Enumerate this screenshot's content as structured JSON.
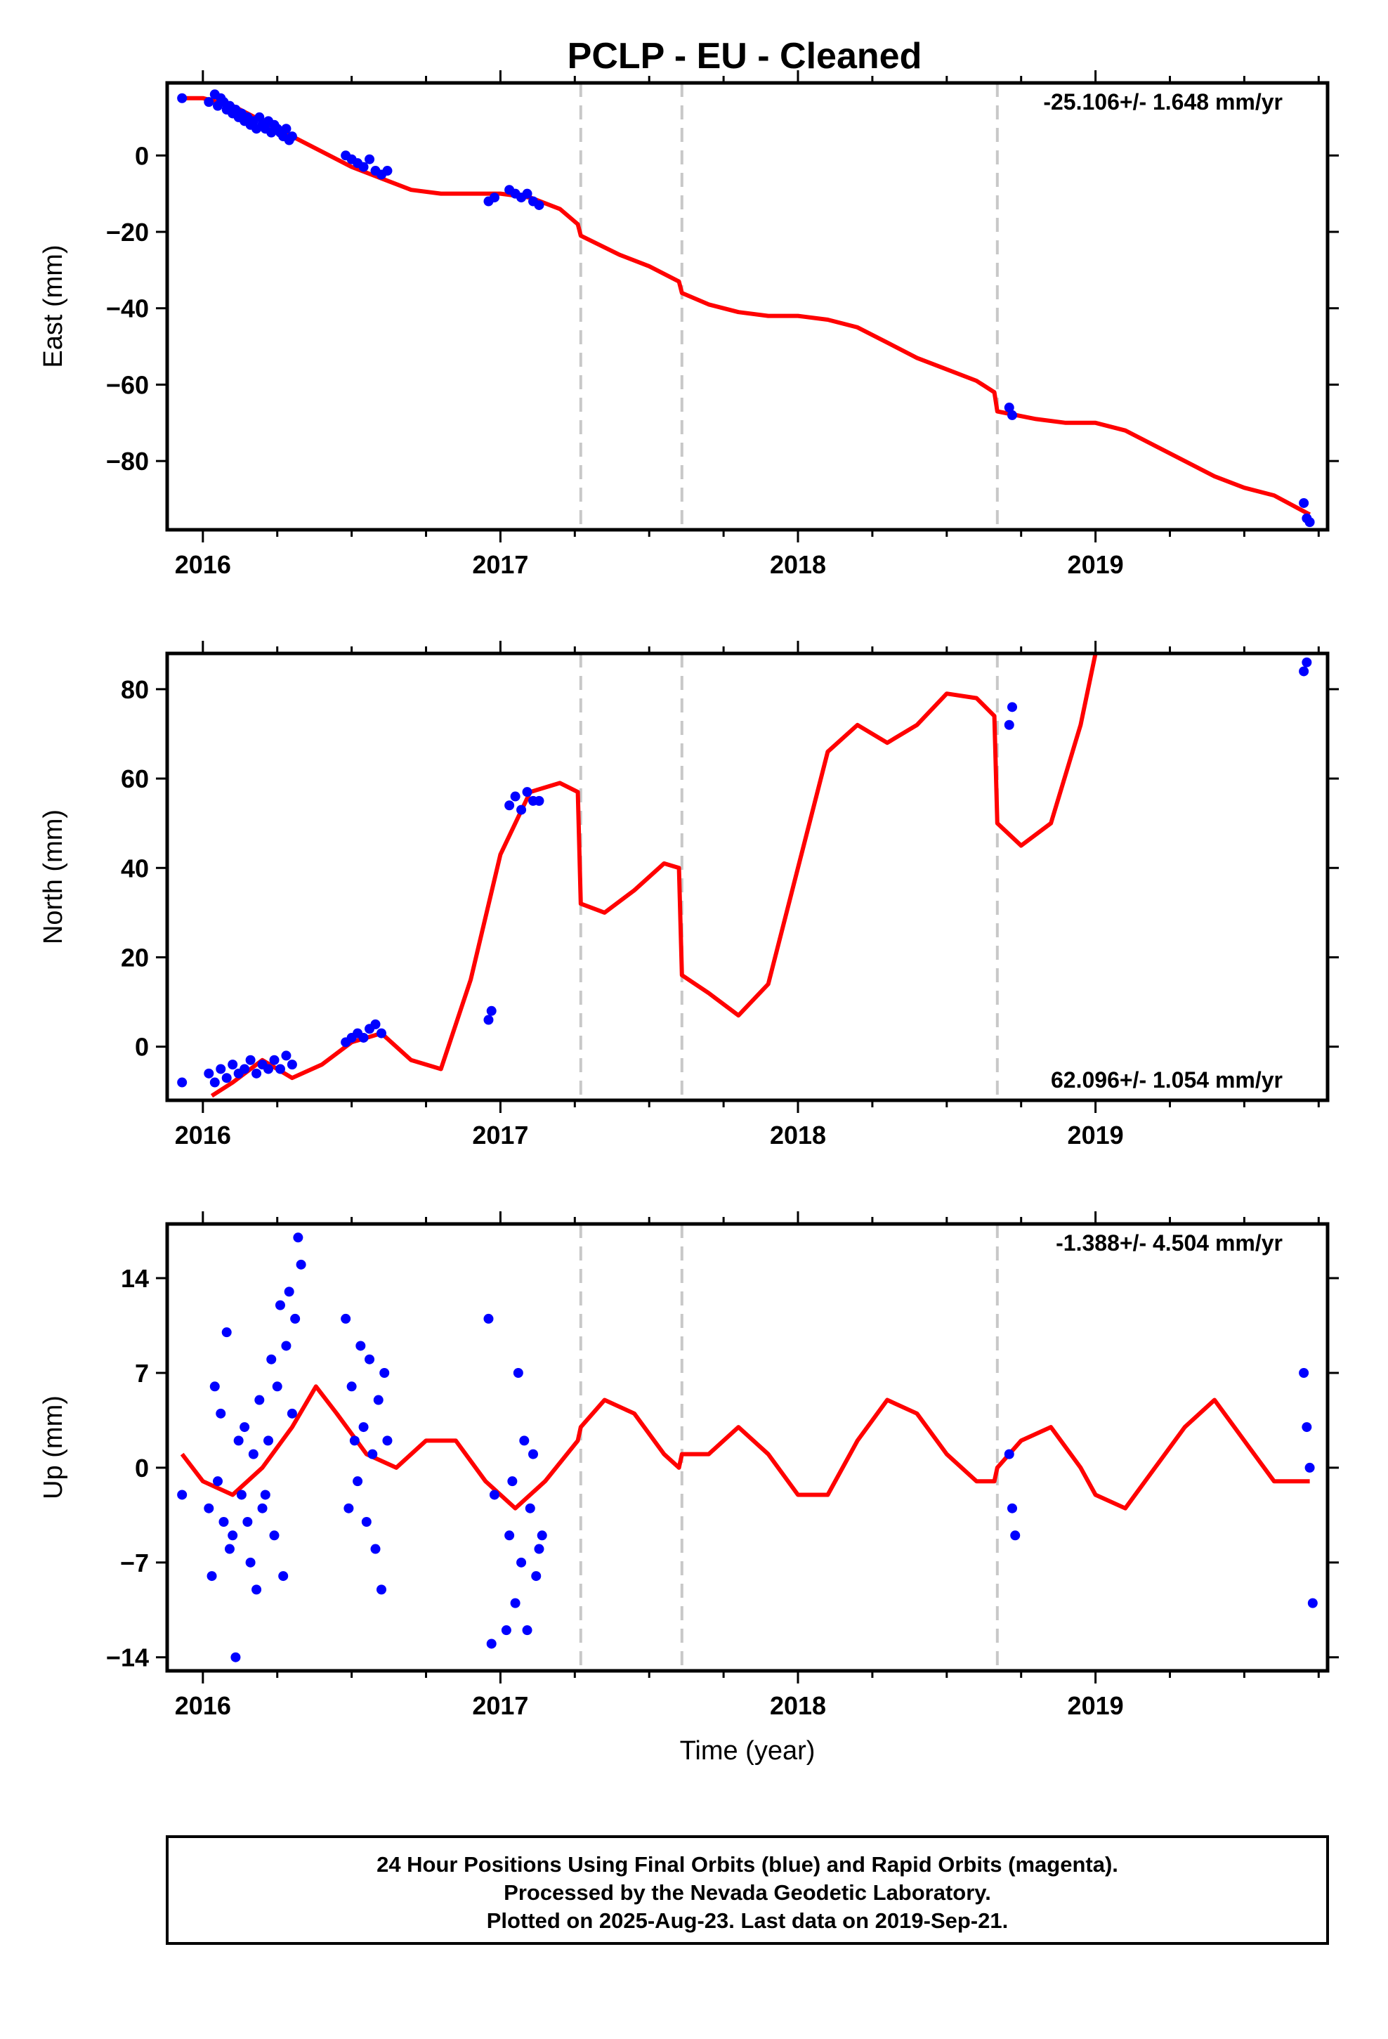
{
  "title": "PCLP  - EU - Cleaned",
  "colors": {
    "data": "#0000ff",
    "model": "#ff0000",
    "offsets": "#c8c8c8",
    "frame": "#000000"
  },
  "chart_data": [
    {
      "type": "scatter",
      "panel": "east",
      "ylabel": "East (mm)",
      "rate_label": "-25.106+/- 1.648 mm/yr",
      "xlim": [
        2015.88,
        2019.78
      ],
      "ylim": [
        -98,
        19
      ],
      "xticks": [
        2016,
        2017,
        2018,
        2019
      ],
      "yticks": [
        0,
        -20,
        -40,
        -60,
        -80
      ],
      "offset_lines": [
        2017.27,
        2017.61,
        2018.67
      ],
      "observations": {
        "x": [
          2015.93,
          2016.02,
          2016.04,
          2016.05,
          2016.06,
          2016.07,
          2016.08,
          2016.09,
          2016.1,
          2016.11,
          2016.12,
          2016.13,
          2016.14,
          2016.15,
          2016.16,
          2016.17,
          2016.18,
          2016.19,
          2016.2,
          2016.21,
          2016.22,
          2016.23,
          2016.24,
          2016.25,
          2016.26,
          2016.27,
          2016.28,
          2016.29,
          2016.3,
          2016.48,
          2016.5,
          2016.52,
          2016.54,
          2016.56,
          2016.58,
          2016.6,
          2016.62,
          2016.96,
          2016.98,
          2017.03,
          2017.05,
          2017.07,
          2017.09,
          2017.11,
          2017.13,
          2018.71,
          2018.72,
          2019.7,
          2019.71,
          2019.72
        ],
        "y": [
          15,
          14,
          16,
          13,
          15,
          14,
          12,
          13,
          11,
          12,
          10,
          11,
          9,
          10,
          8,
          9,
          7,
          10,
          8,
          7,
          9,
          6,
          8,
          7,
          6,
          5,
          7,
          4,
          5,
          0,
          -1,
          -2,
          -3,
          -1,
          -4,
          -5,
          -4,
          -12,
          -11,
          -9,
          -10,
          -11,
          -10,
          -12,
          -13,
          -66,
          -68,
          -91,
          -95,
          -96
        ]
      },
      "model": {
        "x": [
          2015.93,
          2016.0,
          2016.1,
          2016.2,
          2016.3,
          2016.4,
          2016.5,
          2016.6,
          2016.7,
          2016.8,
          2016.9,
          2017.0,
          2017.1,
          2017.2,
          2017.26,
          2017.27,
          2017.4,
          2017.5,
          2017.6,
          2017.61,
          2017.7,
          2017.8,
          2017.9,
          2018.0,
          2018.1,
          2018.2,
          2018.3,
          2018.4,
          2018.5,
          2018.6,
          2018.66,
          2018.67,
          2018.8,
          2018.9,
          2019.0,
          2019.1,
          2019.2,
          2019.3,
          2019.4,
          2019.5,
          2019.6,
          2019.72
        ],
        "y": [
          15,
          15,
          13,
          9,
          5,
          1,
          -3,
          -6,
          -9,
          -10,
          -10,
          -10,
          -11,
          -14,
          -18,
          -21,
          -26,
          -29,
          -33,
          -36,
          -39,
          -41,
          -42,
          -42,
          -43,
          -45,
          -49,
          -53,
          -56,
          -59,
          -62,
          -67,
          -69,
          -70,
          -70,
          -72,
          -76,
          -80,
          -84,
          -87,
          -89,
          -94
        ]
      }
    },
    {
      "type": "scatter",
      "panel": "north",
      "ylabel": "North (mm)",
      "rate_label": "62.096+/- 1.054 mm/yr",
      "xlim": [
        2015.88,
        2019.78
      ],
      "ylim": [
        -12,
        88
      ],
      "xticks": [
        2016,
        2017,
        2018,
        2019
      ],
      "yticks": [
        0,
        20,
        40,
        60,
        80
      ],
      "offset_lines": [
        2017.27,
        2017.61,
        2018.67
      ],
      "observations": {
        "x": [
          2015.93,
          2016.02,
          2016.04,
          2016.06,
          2016.08,
          2016.1,
          2016.12,
          2016.14,
          2016.16,
          2016.18,
          2016.2,
          2016.22,
          2016.24,
          2016.26,
          2016.28,
          2016.3,
          2016.48,
          2016.5,
          2016.52,
          2016.54,
          2016.56,
          2016.58,
          2016.6,
          2016.96,
          2016.97,
          2017.03,
          2017.05,
          2017.07,
          2017.09,
          2017.11,
          2017.13,
          2018.71,
          2018.72,
          2019.7,
          2019.71
        ],
        "y": [
          -8,
          -6,
          -8,
          -5,
          -7,
          -4,
          -6,
          -5,
          -3,
          -6,
          -4,
          -5,
          -3,
          -5,
          -2,
          -4,
          1,
          2,
          3,
          2,
          4,
          5,
          3,
          6,
          8,
          54,
          56,
          53,
          57,
          55,
          55,
          72,
          76,
          84,
          86
        ]
      },
      "model": {
        "x": [
          2016.03,
          2016.1,
          2016.2,
          2016.3,
          2016.4,
          2016.5,
          2016.6,
          2016.7,
          2016.8,
          2016.9,
          2017.0,
          2017.1,
          2017.2,
          2017.26,
          2017.27,
          2017.35,
          2017.45,
          2017.55,
          2017.6,
          2017.61,
          2017.7,
          2017.8,
          2017.9,
          2018.0,
          2018.1,
          2018.2,
          2018.3,
          2018.4,
          2018.5,
          2018.6,
          2018.66,
          2018.67,
          2018.75,
          2018.85,
          2018.95,
          2019.0
        ],
        "y": [
          -11,
          -8,
          -3,
          -7,
          -4,
          1,
          3,
          -3,
          -5,
          15,
          43,
          57,
          59,
          57,
          32,
          30,
          35,
          41,
          40,
          16,
          12,
          7,
          14,
          40,
          66,
          72,
          68,
          72,
          79,
          78,
          74,
          50,
          45,
          50,
          72,
          88
        ]
      }
    },
    {
      "type": "scatter",
      "panel": "up",
      "ylabel": "Up (mm)",
      "rate_label": "-1.388+/- 4.504 mm/yr",
      "xlabel": "Time (year)",
      "xlim": [
        2015.88,
        2019.78
      ],
      "ylim": [
        -15,
        18
      ],
      "xticks": [
        2016,
        2017,
        2018,
        2019
      ],
      "yticks": [
        14,
        7,
        0,
        -7,
        -14
      ],
      "offset_lines": [
        2017.27,
        2017.61,
        2018.67
      ],
      "observations": {
        "x": [
          2015.93,
          2016.02,
          2016.03,
          2016.04,
          2016.05,
          2016.06,
          2016.07,
          2016.08,
          2016.09,
          2016.1,
          2016.11,
          2016.12,
          2016.13,
          2016.14,
          2016.15,
          2016.16,
          2016.17,
          2016.18,
          2016.19,
          2016.2,
          2016.21,
          2016.22,
          2016.23,
          2016.24,
          2016.25,
          2016.26,
          2016.27,
          2016.28,
          2016.29,
          2016.3,
          2016.31,
          2016.32,
          2016.33,
          2016.48,
          2016.49,
          2016.5,
          2016.51,
          2016.52,
          2016.53,
          2016.54,
          2016.55,
          2016.56,
          2016.57,
          2016.58,
          2016.59,
          2016.6,
          2016.61,
          2016.62,
          2016.96,
          2016.97,
          2016.98,
          2017.02,
          2017.03,
          2017.04,
          2017.05,
          2017.06,
          2017.07,
          2017.08,
          2017.09,
          2017.1,
          2017.11,
          2017.12,
          2017.13,
          2017.14,
          2018.71,
          2018.72,
          2018.73,
          2019.7,
          2019.71,
          2019.72,
          2019.73
        ],
        "y": [
          -2,
          -3,
          -8,
          6,
          -1,
          4,
          -4,
          10,
          -6,
          -5,
          -14,
          2,
          -2,
          3,
          -4,
          -7,
          1,
          -9,
          5,
          -3,
          -2,
          2,
          8,
          -5,
          6,
          12,
          -8,
          9,
          13,
          4,
          11,
          17,
          15,
          11,
          -3,
          6,
          2,
          -1,
          9,
          3,
          -4,
          8,
          1,
          -6,
          5,
          -9,
          7,
          2,
          11,
          -13,
          -2,
          -12,
          -5,
          -1,
          -10,
          7,
          -7,
          2,
          -12,
          -3,
          1,
          -8,
          -6,
          -5,
          1,
          -3,
          -5,
          7,
          3,
          0,
          -10
        ],
        "note": "approximate"
      },
      "model": {
        "x": [
          2015.93,
          2016.0,
          2016.1,
          2016.2,
          2016.3,
          2016.38,
          2016.45,
          2016.55,
          2016.65,
          2016.75,
          2016.85,
          2016.95,
          2017.05,
          2017.15,
          2017.26,
          2017.27,
          2017.35,
          2017.45,
          2017.55,
          2017.6,
          2017.61,
          2017.7,
          2017.8,
          2017.9,
          2018.0,
          2018.1,
          2018.2,
          2018.3,
          2018.4,
          2018.5,
          2018.6,
          2018.66,
          2018.67,
          2018.75,
          2018.85,
          2018.95,
          2019.0,
          2019.1,
          2019.2,
          2019.3,
          2019.4,
          2019.5,
          2019.6,
          2019.72
        ],
        "y": [
          1,
          -1,
          -2,
          0,
          3,
          6,
          4,
          1,
          0,
          2,
          2,
          -1,
          -3,
          -1,
          2,
          3,
          5,
          4,
          1,
          0,
          1,
          1,
          3,
          1,
          -2,
          -2,
          2,
          5,
          4,
          1,
          -1,
          -1,
          0,
          2,
          3,
          0,
          -2,
          -3,
          0,
          3,
          5,
          2,
          -1,
          -1
        ]
      }
    }
  ],
  "footer": {
    "line1": "24 Hour Positions Using Final Orbits (blue) and Rapid Orbits (magenta).",
    "line2": "Processed by the Nevada Geodetic Laboratory.",
    "line3": "Plotted on 2025-Aug-23. Last data on 2019-Sep-21."
  }
}
